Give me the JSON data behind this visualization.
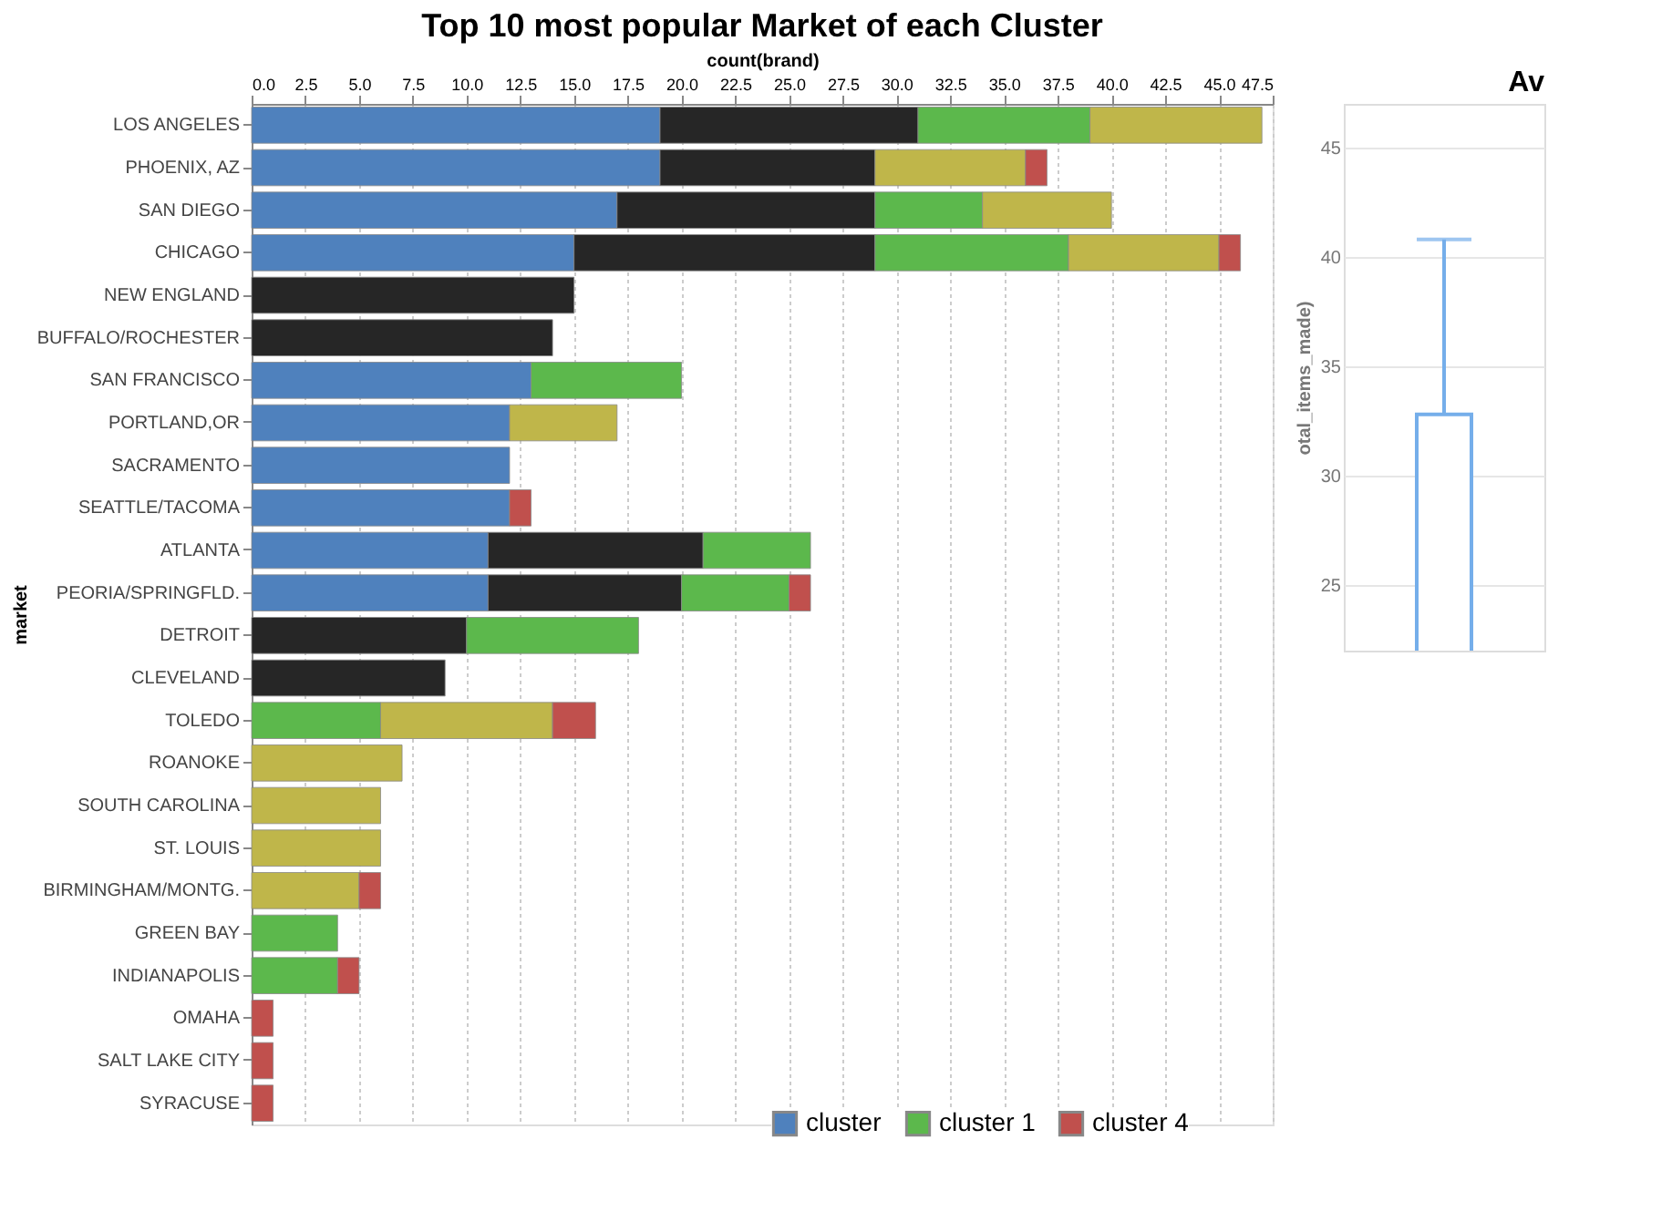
{
  "chart_data": [
    {
      "type": "bar",
      "orientation": "horizontal",
      "stacked": true,
      "title": "Top 10 most popular Market of each Cluster",
      "xlabel": "count(brand)",
      "ylabel": "market",
      "categories": [
        "LOS ANGELES",
        "PHOENIX, AZ",
        "SAN DIEGO",
        "CHICAGO",
        "NEW ENGLAND",
        "BUFFALO/ROCHESTER",
        "SAN FRANCISCO",
        "PORTLAND,OR",
        "SACRAMENTO",
        "SEATTLE/TACOMA",
        "ATLANTA",
        "PEORIA/SPRINGFLD.",
        "DETROIT",
        "CLEVELAND",
        "TOLEDO",
        "ROANOKE",
        "SOUTH CAROLINA",
        "ST. LOUIS",
        "BIRMINGHAM/MONTG.",
        "GREEN BAY",
        "INDIANAPOLIS",
        "OMAHA",
        "SALT LAKE CITY",
        "SYRACUSE"
      ],
      "series": [
        {
          "name": "cluster",
          "color": "#4f81bd",
          "values": [
            19,
            19,
            17,
            15,
            null,
            null,
            13,
            12,
            12,
            12,
            11,
            11,
            null,
            null,
            null,
            null,
            null,
            null,
            null,
            null,
            null,
            null,
            null,
            null
          ]
        },
        {
          "color": "#262626",
          "values": [
            12,
            10,
            12,
            14,
            15,
            14,
            null,
            null,
            null,
            null,
            10,
            9,
            10,
            9,
            null,
            null,
            null,
            null,
            null,
            null,
            null,
            null,
            null,
            null
          ]
        },
        {
          "name": "cluster 1",
          "color": "#5cb84c",
          "values": [
            8,
            null,
            5,
            9,
            null,
            null,
            7,
            null,
            null,
            null,
            5,
            5,
            8,
            null,
            6,
            null,
            null,
            null,
            null,
            4,
            4,
            null,
            null,
            null
          ]
        },
        {
          "color": "#bfb64a",
          "values": [
            8,
            7,
            6,
            7,
            null,
            null,
            null,
            5,
            null,
            null,
            null,
            null,
            null,
            null,
            8,
            7,
            6,
            6,
            5,
            null,
            null,
            null,
            null,
            null
          ]
        },
        {
          "name": "cluster 4",
          "color": "#c0504d",
          "values": [
            null,
            1,
            null,
            1,
            null,
            null,
            null,
            null,
            null,
            1,
            null,
            1,
            null,
            null,
            2,
            null,
            null,
            null,
            1,
            null,
            1,
            1,
            1,
            1
          ]
        }
      ],
      "xlim": [
        0,
        47.5
      ],
      "xticks": [
        {
          "value": 0,
          "label": "0.0"
        },
        2.5,
        {
          "value": 5,
          "label": "5.0"
        },
        7.5,
        {
          "value": 10,
          "label": "10.0"
        },
        12.5,
        {
          "value": 15,
          "label": "15.0"
        },
        17.5,
        {
          "value": 20,
          "label": "20.0"
        },
        22.5,
        {
          "value": 25,
          "label": "25.0"
        },
        27.5,
        {
          "value": 30,
          "label": "30.0"
        },
        32.5,
        {
          "value": 35,
          "label": "35.0"
        },
        37.5,
        {
          "value": 40,
          "label": "40.0"
        },
        42.5,
        {
          "value": 45,
          "label": "45.0"
        },
        47.5
      ],
      "grid": "x",
      "legend": "bottom right"
    },
    {
      "type": "bar",
      "title": "Av",
      "ylabel": "otal_items_made)",
      "categories": [
        null
      ],
      "values": [
        32.8
      ],
      "errors": [
        [
          32.8,
          40.8
        ]
      ],
      "color": "#75aeea",
      "ylim": [
        22,
        47
      ],
      "yticks": [
        25,
        30,
        35,
        40,
        45
      ],
      "grid": "y"
    }
  ]
}
